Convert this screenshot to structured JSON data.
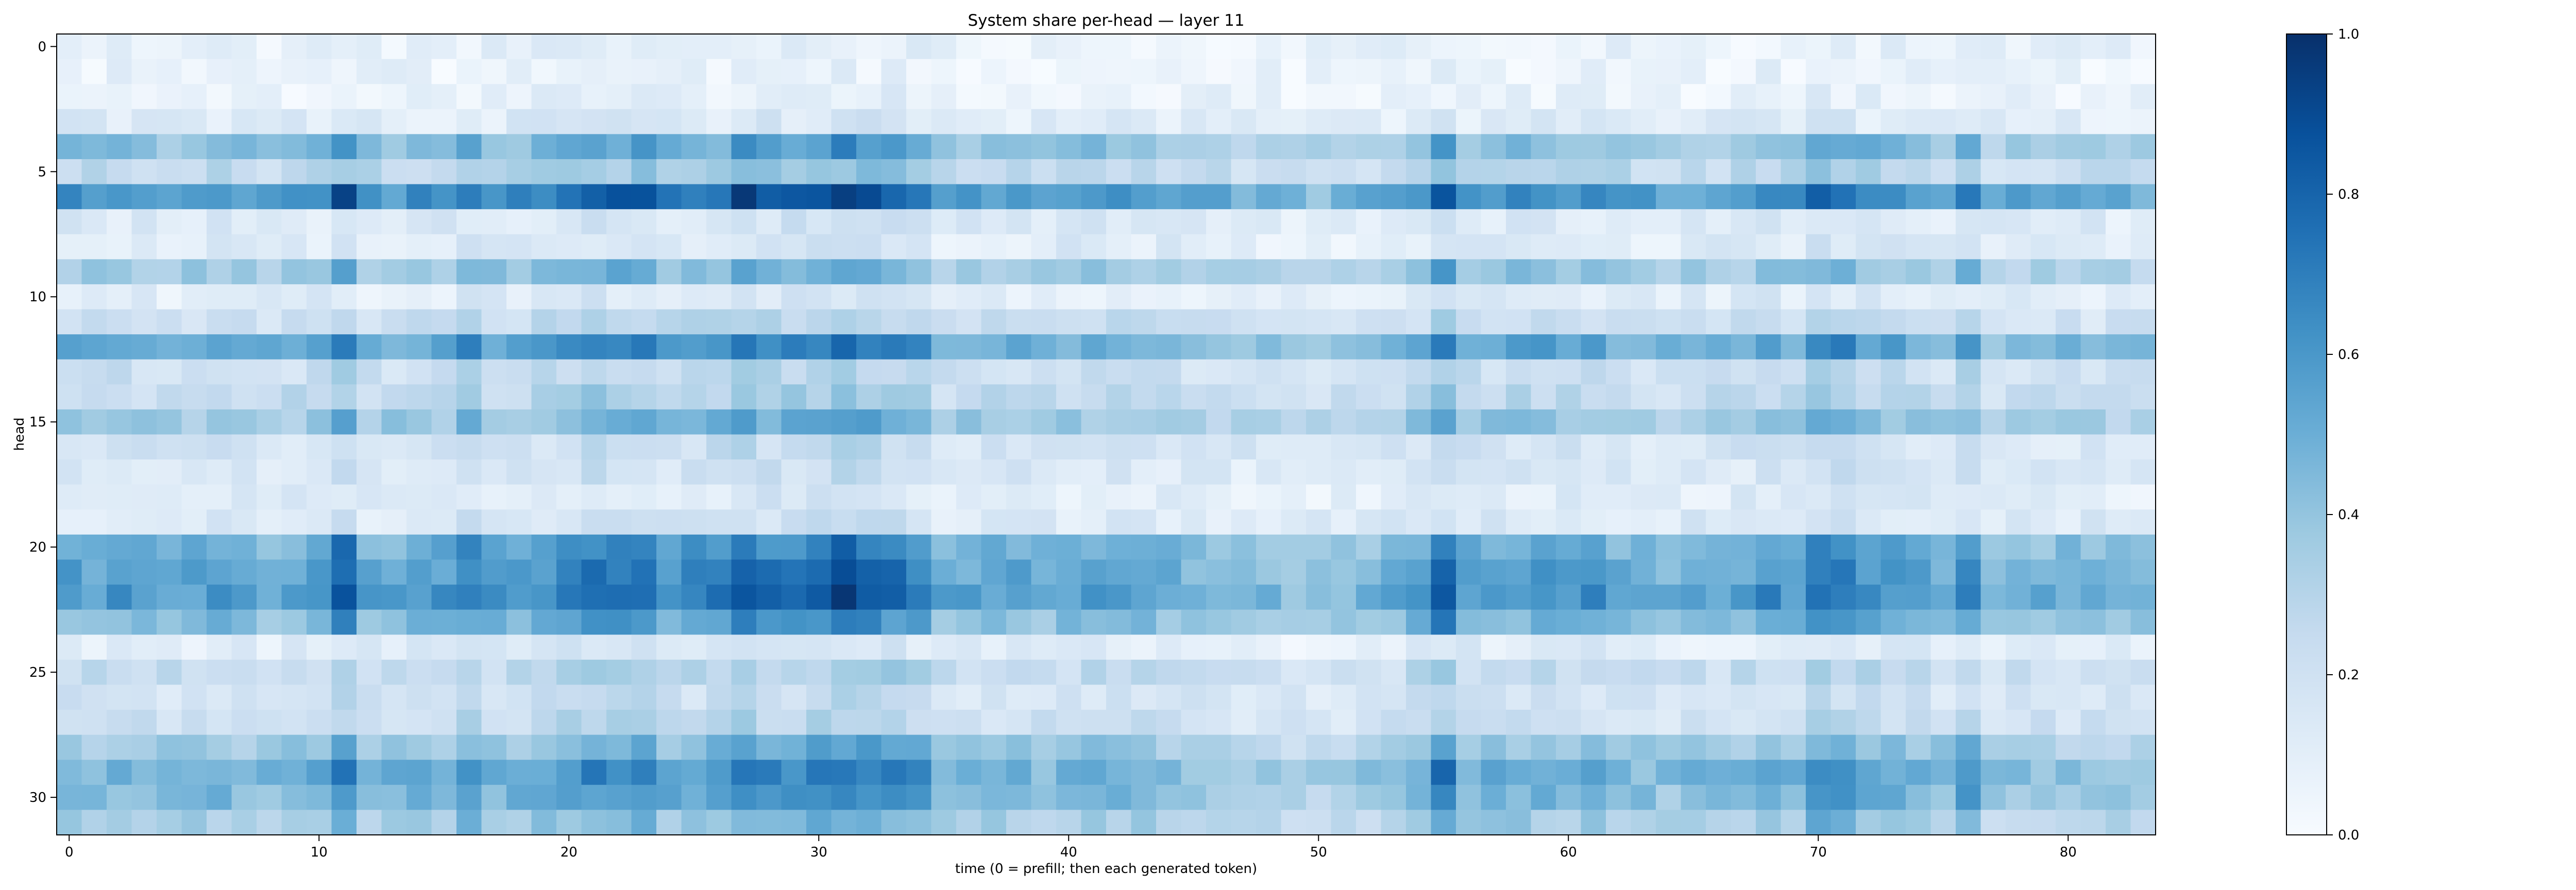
{
  "chart_data": {
    "type": "heatmap",
    "title": "System share per-head — layer 11",
    "xlabel": "time (0 = prefill; then each generated token)",
    "ylabel": "head",
    "n_cols": 84,
    "n_rows": 32,
    "xlim": [
      -0.5,
      83.5
    ],
    "ylim": [
      31.5,
      -0.5
    ],
    "x_ticks": [
      0,
      10,
      20,
      30,
      40,
      50,
      60,
      70,
      80
    ],
    "y_ticks": [
      0,
      5,
      10,
      15,
      20,
      25,
      30
    ],
    "colormap": "Blues",
    "color_range": [
      0.0,
      1.0
    ],
    "colorbar_ticks": [
      "0.0",
      "0.2",
      "0.4",
      "0.6",
      "0.8",
      "1.0"
    ],
    "colorbar_tick_values": [
      0.0,
      0.2,
      0.4,
      0.6,
      0.8,
      1.0
    ],
    "row_levels": [
      0.08,
      0.06,
      0.07,
      0.12,
      0.42,
      0.28,
      0.62,
      0.14,
      0.13,
      0.38,
      0.12,
      0.22,
      0.52,
      0.22,
      0.26,
      0.38,
      0.18,
      0.16,
      0.12,
      0.15,
      0.5,
      0.55,
      0.6,
      0.45,
      0.12,
      0.25,
      0.18,
      0.22,
      0.38,
      0.5,
      0.45,
      0.35
    ],
    "column_levels": [
      1.0,
      0.95,
      1.0,
      0.95,
      0.9,
      0.95,
      1.0,
      0.95,
      0.9,
      0.95,
      1.0,
      1.45,
      0.95,
      0.95,
      1.0,
      1.0,
      1.25,
      1.0,
      1.05,
      1.1,
      1.25,
      1.35,
      1.3,
      1.35,
      1.1,
      1.15,
      1.2,
      1.45,
      1.3,
      1.3,
      1.35,
      1.55,
      1.4,
      1.35,
      1.25,
      0.9,
      0.95,
      0.95,
      0.95,
      0.9,
      0.95,
      1.0,
      1.0,
      0.95,
      0.9,
      0.85,
      0.85,
      0.8,
      0.8,
      0.7,
      0.7,
      0.75,
      0.8,
      0.9,
      1.05,
      1.5,
      1.0,
      1.0,
      1.05,
      1.05,
      1.0,
      1.05,
      0.95,
      0.9,
      0.85,
      0.9,
      0.9,
      0.95,
      1.1,
      1.0,
      1.35,
      1.25,
      1.1,
      1.05,
      1.0,
      0.95,
      1.25,
      0.8,
      0.85,
      0.85,
      0.85,
      0.85,
      0.85,
      0.8
    ]
  }
}
